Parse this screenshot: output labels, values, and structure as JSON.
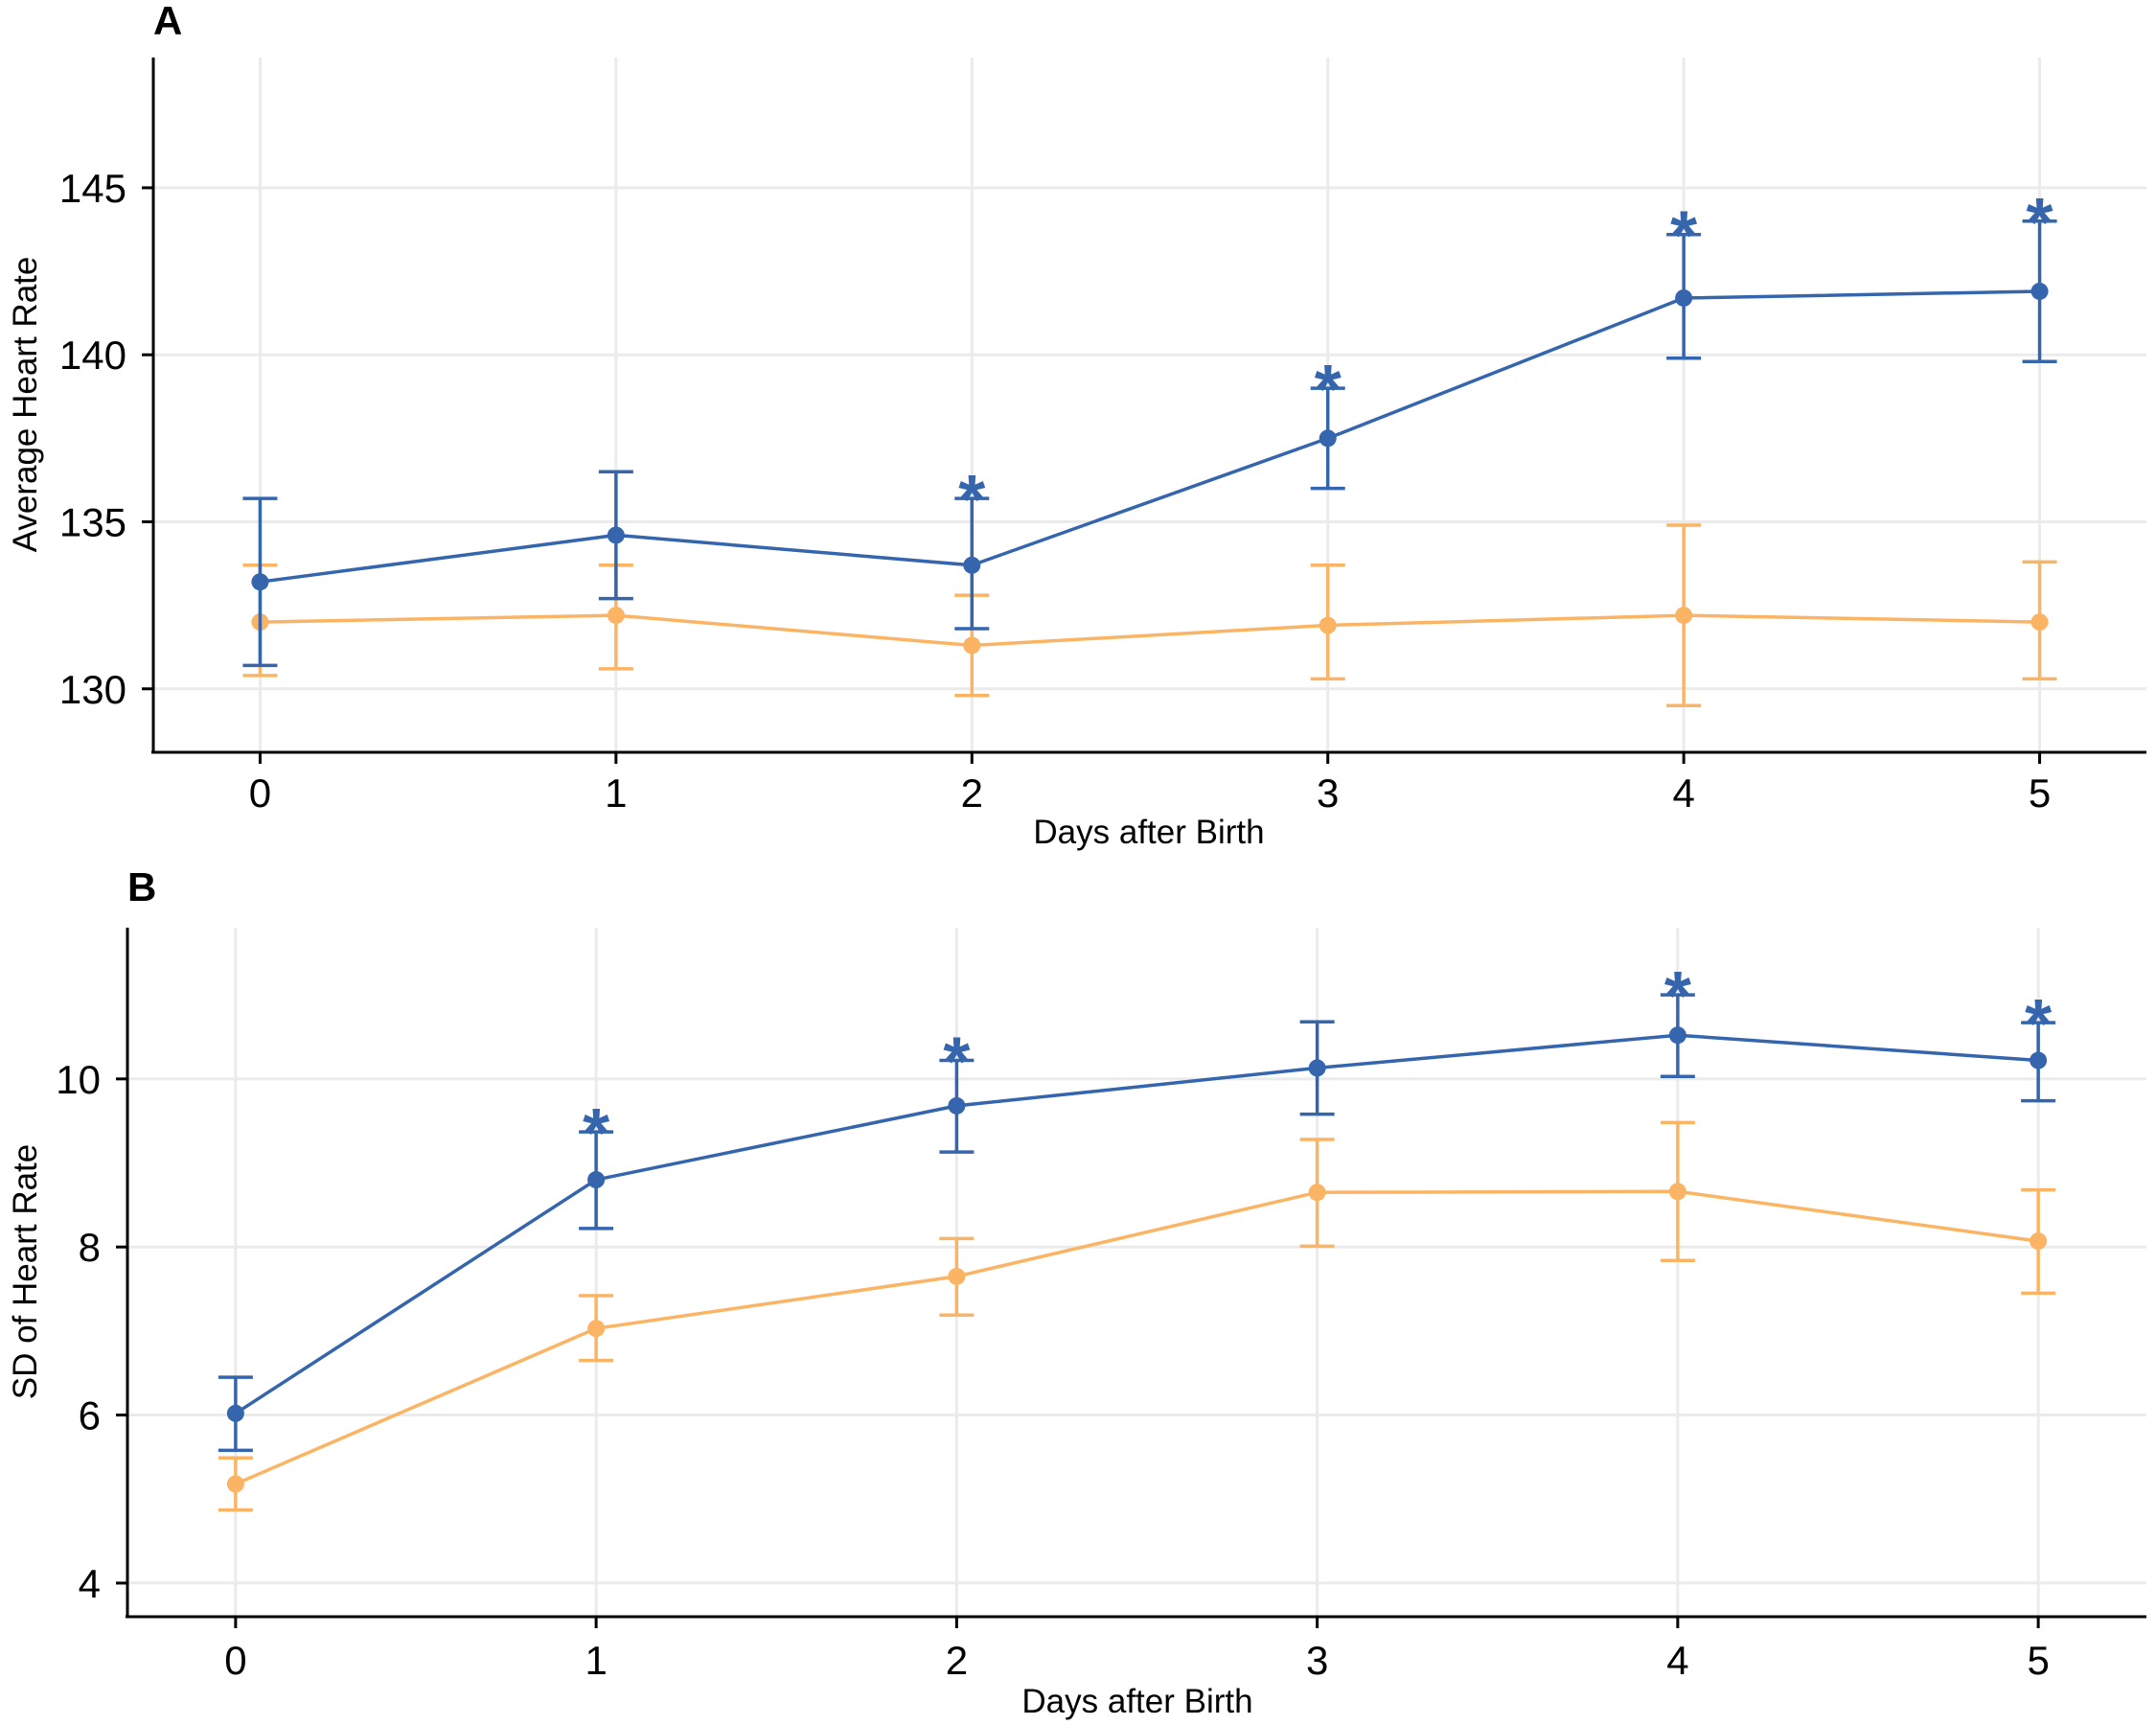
{
  "colors": {
    "blue": "#3465ad",
    "orange": "#fbb464"
  },
  "chart_data": [
    {
      "type": "line",
      "panel_label": "A",
      "xlabel": "Days after Birth",
      "ylabel": "Average Heart Rate",
      "x": [
        0,
        1,
        2,
        3,
        4,
        5
      ],
      "xticks": [
        "0",
        "1",
        "2",
        "3",
        "4",
        "5"
      ],
      "yticks": [
        130,
        135,
        140,
        145
      ],
      "xlim": [
        -0.3,
        5.3
      ],
      "ylim": [
        128.1,
        148.9
      ],
      "grid": true,
      "legend": "none",
      "series": [
        {
          "color_key": "blue",
          "values": [
            133.2,
            134.6,
            133.7,
            137.5,
            141.7,
            141.9
          ],
          "lower": [
            130.7,
            132.7,
            131.8,
            136.0,
            139.9,
            139.8
          ],
          "upper": [
            135.7,
            136.5,
            135.7,
            139.0,
            143.6,
            144.0
          ]
        },
        {
          "color_key": "orange",
          "values": [
            132.0,
            132.2,
            131.3,
            131.9,
            132.2,
            132.0
          ],
          "lower": [
            130.4,
            130.6,
            129.8,
            130.3,
            129.5,
            130.3
          ],
          "upper": [
            133.7,
            133.7,
            132.8,
            133.7,
            134.9,
            133.8
          ]
        }
      ],
      "significance": [
        {
          "x": 2,
          "label": "*"
        },
        {
          "x": 3,
          "label": "*"
        },
        {
          "x": 4,
          "label": "*"
        },
        {
          "x": 5,
          "label": "*"
        }
      ]
    },
    {
      "type": "line",
      "panel_label": "B",
      "xlabel": "Days after Birth",
      "ylabel": "SD of Heart Rate",
      "x": [
        0,
        1,
        2,
        3,
        4,
        5
      ],
      "xticks": [
        "0",
        "1",
        "2",
        "3",
        "4",
        "5"
      ],
      "yticks": [
        4,
        6,
        8,
        10
      ],
      "xlim": [
        -0.3,
        5.3
      ],
      "ylim": [
        3.6,
        11.8
      ],
      "grid": true,
      "legend": "none",
      "series": [
        {
          "color_key": "blue",
          "values": [
            6.02,
            8.8,
            9.68,
            10.13,
            10.52,
            10.22
          ],
          "lower": [
            5.58,
            8.22,
            9.13,
            9.58,
            10.03,
            9.74
          ],
          "upper": [
            6.45,
            9.37,
            10.22,
            10.68,
            11.0,
            10.67
          ]
        },
        {
          "color_key": "orange",
          "values": [
            5.18,
            7.03,
            7.65,
            8.65,
            8.66,
            8.07
          ],
          "lower": [
            4.87,
            6.65,
            7.19,
            8.01,
            7.84,
            7.45
          ],
          "upper": [
            5.49,
            7.42,
            8.1,
            9.28,
            9.48,
            8.68
          ]
        }
      ],
      "significance": [
        {
          "x": 1,
          "label": "*"
        },
        {
          "x": 2,
          "label": "*"
        },
        {
          "x": 4,
          "label": "*"
        },
        {
          "x": 5,
          "label": "*"
        }
      ]
    }
  ]
}
